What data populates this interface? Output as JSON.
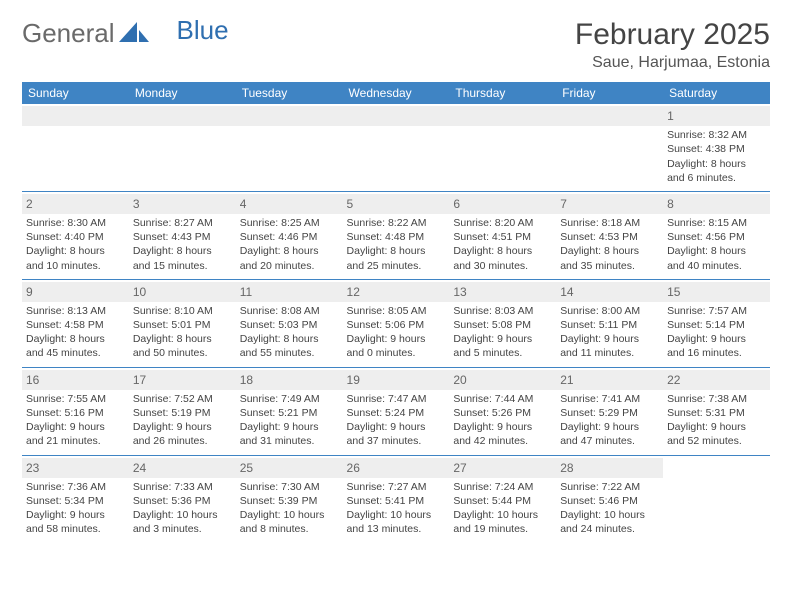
{
  "logo": {
    "general": "General",
    "blue": "Blue"
  },
  "title": "February 2025",
  "location": "Saue, Harjumaa, Estonia",
  "colors": {
    "header_bg": "#3f84c4",
    "header_text": "#ffffff",
    "daynum_bg": "#eeeeee",
    "text": "#444444",
    "rule": "#3f84c4",
    "logo_gray": "#6a6a6a",
    "logo_blue": "#2f6fb0"
  },
  "weekdays": [
    "Sunday",
    "Monday",
    "Tuesday",
    "Wednesday",
    "Thursday",
    "Friday",
    "Saturday"
  ],
  "weeks": [
    [
      null,
      null,
      null,
      null,
      null,
      null,
      {
        "n": "1",
        "sr": "8:32 AM",
        "ss": "4:38 PM",
        "dl": "8 hours and 6 minutes."
      }
    ],
    [
      {
        "n": "2",
        "sr": "8:30 AM",
        "ss": "4:40 PM",
        "dl": "8 hours and 10 minutes."
      },
      {
        "n": "3",
        "sr": "8:27 AM",
        "ss": "4:43 PM",
        "dl": "8 hours and 15 minutes."
      },
      {
        "n": "4",
        "sr": "8:25 AM",
        "ss": "4:46 PM",
        "dl": "8 hours and 20 minutes."
      },
      {
        "n": "5",
        "sr": "8:22 AM",
        "ss": "4:48 PM",
        "dl": "8 hours and 25 minutes."
      },
      {
        "n": "6",
        "sr": "8:20 AM",
        "ss": "4:51 PM",
        "dl": "8 hours and 30 minutes."
      },
      {
        "n": "7",
        "sr": "8:18 AM",
        "ss": "4:53 PM",
        "dl": "8 hours and 35 minutes."
      },
      {
        "n": "8",
        "sr": "8:15 AM",
        "ss": "4:56 PM",
        "dl": "8 hours and 40 minutes."
      }
    ],
    [
      {
        "n": "9",
        "sr": "8:13 AM",
        "ss": "4:58 PM",
        "dl": "8 hours and 45 minutes."
      },
      {
        "n": "10",
        "sr": "8:10 AM",
        "ss": "5:01 PM",
        "dl": "8 hours and 50 minutes."
      },
      {
        "n": "11",
        "sr": "8:08 AM",
        "ss": "5:03 PM",
        "dl": "8 hours and 55 minutes."
      },
      {
        "n": "12",
        "sr": "8:05 AM",
        "ss": "5:06 PM",
        "dl": "9 hours and 0 minutes."
      },
      {
        "n": "13",
        "sr": "8:03 AM",
        "ss": "5:08 PM",
        "dl": "9 hours and 5 minutes."
      },
      {
        "n": "14",
        "sr": "8:00 AM",
        "ss": "5:11 PM",
        "dl": "9 hours and 11 minutes."
      },
      {
        "n": "15",
        "sr": "7:57 AM",
        "ss": "5:14 PM",
        "dl": "9 hours and 16 minutes."
      }
    ],
    [
      {
        "n": "16",
        "sr": "7:55 AM",
        "ss": "5:16 PM",
        "dl": "9 hours and 21 minutes."
      },
      {
        "n": "17",
        "sr": "7:52 AM",
        "ss": "5:19 PM",
        "dl": "9 hours and 26 minutes."
      },
      {
        "n": "18",
        "sr": "7:49 AM",
        "ss": "5:21 PM",
        "dl": "9 hours and 31 minutes."
      },
      {
        "n": "19",
        "sr": "7:47 AM",
        "ss": "5:24 PM",
        "dl": "9 hours and 37 minutes."
      },
      {
        "n": "20",
        "sr": "7:44 AM",
        "ss": "5:26 PM",
        "dl": "9 hours and 42 minutes."
      },
      {
        "n": "21",
        "sr": "7:41 AM",
        "ss": "5:29 PM",
        "dl": "9 hours and 47 minutes."
      },
      {
        "n": "22",
        "sr": "7:38 AM",
        "ss": "5:31 PM",
        "dl": "9 hours and 52 minutes."
      }
    ],
    [
      {
        "n": "23",
        "sr": "7:36 AM",
        "ss": "5:34 PM",
        "dl": "9 hours and 58 minutes."
      },
      {
        "n": "24",
        "sr": "7:33 AM",
        "ss": "5:36 PM",
        "dl": "10 hours and 3 minutes."
      },
      {
        "n": "25",
        "sr": "7:30 AM",
        "ss": "5:39 PM",
        "dl": "10 hours and 8 minutes."
      },
      {
        "n": "26",
        "sr": "7:27 AM",
        "ss": "5:41 PM",
        "dl": "10 hours and 13 minutes."
      },
      {
        "n": "27",
        "sr": "7:24 AM",
        "ss": "5:44 PM",
        "dl": "10 hours and 19 minutes."
      },
      {
        "n": "28",
        "sr": "7:22 AM",
        "ss": "5:46 PM",
        "dl": "10 hours and 24 minutes."
      },
      null
    ]
  ],
  "labels": {
    "sunrise": "Sunrise: ",
    "sunset": "Sunset: ",
    "daylight": "Daylight: "
  }
}
